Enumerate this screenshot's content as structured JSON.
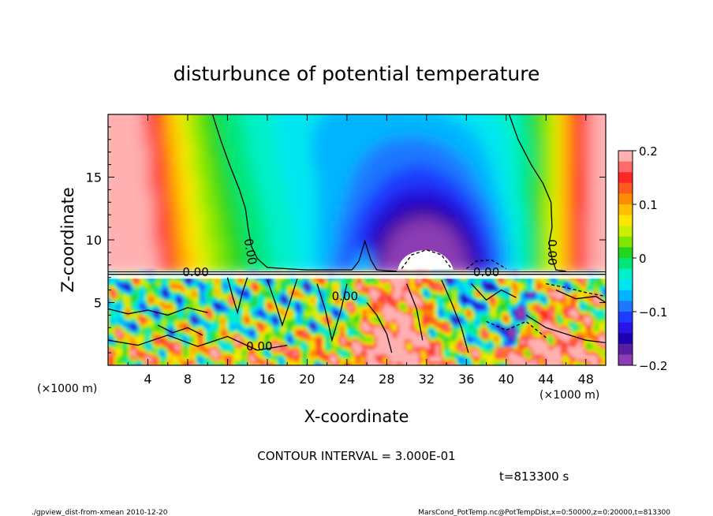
{
  "chart_data": {
    "type": "heatmap",
    "title": "disturbunce of potential temperature",
    "xlabel": "X-coordinate",
    "ylabel": "Z-coordinate",
    "x_unit": "(×1000 m)",
    "y_unit": "(×1000 m)",
    "xlim": [
      0,
      50
    ],
    "ylim": [
      0,
      20
    ],
    "x_ticks": [
      4,
      8,
      12,
      16,
      20,
      24,
      28,
      32,
      36,
      40,
      44,
      48
    ],
    "y_ticks": [
      5,
      10,
      15
    ],
    "colorbar": {
      "range": [
        -0.2,
        0.2
      ],
      "tick_labels": [
        "0.2",
        "0.1",
        "0",
        "−0.1",
        "−0.2"
      ],
      "tick_values": [
        0.2,
        0.1,
        0,
        -0.1,
        -0.2
      ],
      "levels": [
        {
          "from": 0.18,
          "to": 0.2,
          "color": "#ffb0b0"
        },
        {
          "from": 0.16,
          "to": 0.18,
          "color": "#ff6a6a"
        },
        {
          "from": 0.14,
          "to": 0.16,
          "color": "#ff2626"
        },
        {
          "from": 0.12,
          "to": 0.14,
          "color": "#ff5a1e"
        },
        {
          "from": 0.1,
          "to": 0.12,
          "color": "#ff8c00"
        },
        {
          "from": 0.08,
          "to": 0.1,
          "color": "#ffbe00"
        },
        {
          "from": 0.06,
          "to": 0.08,
          "color": "#ffe600"
        },
        {
          "from": 0.04,
          "to": 0.06,
          "color": "#c8f000"
        },
        {
          "from": 0.02,
          "to": 0.04,
          "color": "#7ee600"
        },
        {
          "from": 0.0,
          "to": 0.02,
          "color": "#22d61e"
        },
        {
          "from": -0.02,
          "to": 0.0,
          "color": "#00e67a"
        },
        {
          "from": -0.04,
          "to": -0.02,
          "color": "#00f0c8"
        },
        {
          "from": -0.06,
          "to": -0.04,
          "color": "#00e6f0"
        },
        {
          "from": -0.08,
          "to": -0.06,
          "color": "#00b4ff"
        },
        {
          "from": -0.1,
          "to": -0.08,
          "color": "#1e78ff"
        },
        {
          "from": -0.12,
          "to": -0.1,
          "color": "#1e3cff"
        },
        {
          "from": -0.14,
          "to": -0.12,
          "color": "#2814e6"
        },
        {
          "from": -0.16,
          "to": -0.14,
          "color": "#1e00b4"
        },
        {
          "from": -0.18,
          "to": -0.16,
          "color": "#5a1ea0"
        },
        {
          "from": -0.2,
          "to": -0.18,
          "color": "#8c3cb4"
        }
      ]
    },
    "contour_labels": [
      {
        "text": "0.00",
        "x": 13.9,
        "z": 9.0,
        "rotate": 80
      },
      {
        "text": "0.00",
        "x": 8.8,
        "z": 7.1,
        "rotate": 0
      },
      {
        "text": "0.00",
        "x": 23.8,
        "z": 5.2,
        "rotate": 0
      },
      {
        "text": "0.00",
        "x": 15.2,
        "z": 1.2,
        "rotate": 0
      },
      {
        "text": "0.00",
        "x": 38.0,
        "z": 7.1,
        "rotate": 0
      },
      {
        "text": "0.00",
        "x": 44.2,
        "z": 9.0,
        "rotate": 90
      }
    ]
  },
  "annotations": {
    "contour_interval": "CONTOUR INTERVAL = 3.000E-01",
    "time": "t=813300 s",
    "footer_left": "./gpview_dist-from-xmean  2010-12-20",
    "footer_right": "MarsCond_PotTemp.nc@PotTempDist,x=0:50000,z=0:20000,t=813300"
  }
}
